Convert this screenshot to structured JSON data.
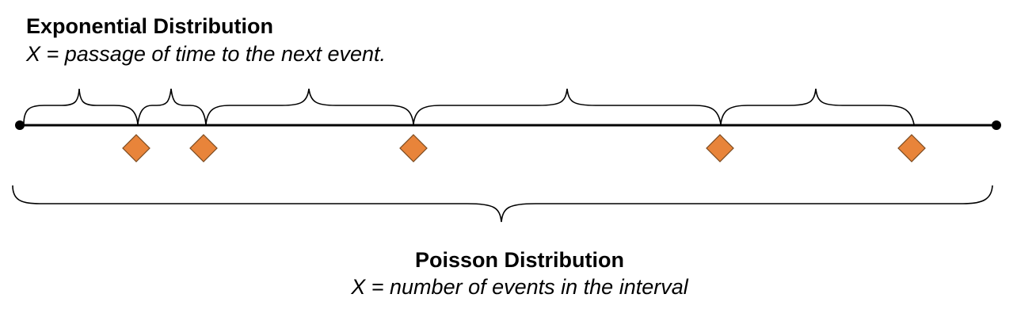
{
  "exponential": {
    "title": "Exponential Distribution",
    "subtitle": "X = passage of time to the next event."
  },
  "poisson": {
    "title": "Poisson Distribution",
    "subtitle": "X = number of events in the interval"
  },
  "colors": {
    "event_fill": "#E8843A",
    "event_stroke": "#7a4a20",
    "line": "#000000",
    "brace": "#000000"
  },
  "events_count": 5
}
